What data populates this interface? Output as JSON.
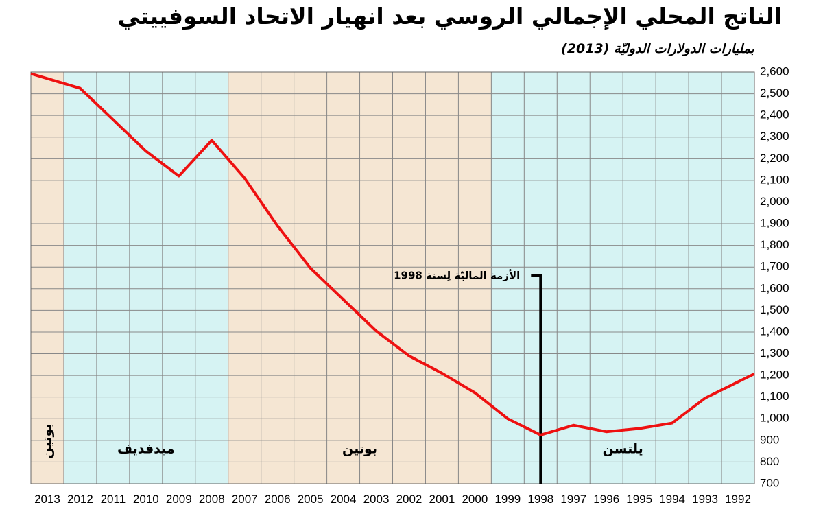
{
  "header": {
    "title": "الناتج المحلي الإجمالي الروسي بعد انهيار الاتحاد السوفييتي",
    "subtitle": "بمليارات الدولارات الدوليّة (2013)"
  },
  "chart_data": {
    "type": "line",
    "title": "الناتج المحلي الإجمالي الروسي بعد انهيار الاتحاد السوفييتي",
    "subtitle": "بمليارات الدولارات الدوليّة (2013)",
    "xlabel": "",
    "ylabel": "",
    "x_direction": "reversed",
    "y_axis_position": "right",
    "grid": true,
    "x": [
      2013,
      2012,
      2011,
      2010,
      2009,
      2008,
      2007,
      2006,
      2005,
      2004,
      2003,
      2002,
      2001,
      2000,
      1999,
      1998,
      1997,
      1996,
      1995,
      1994,
      1993,
      1992
    ],
    "ylim": [
      700,
      2600
    ],
    "y_ticks": [
      700,
      800,
      900,
      1000,
      1100,
      1200,
      1300,
      1400,
      1500,
      1600,
      1700,
      1800,
      1900,
      2000,
      2100,
      2200,
      2300,
      2400,
      2500,
      2600
    ],
    "y_tick_labels": [
      "700",
      "800",
      "900",
      "1,000",
      "1,100",
      "1,200",
      "1,300",
      "1,400",
      "1,500",
      "1,600",
      "1,700",
      "1,800",
      "1,900",
      "2,000",
      "2,100",
      "2,200",
      "2,300",
      "2,400",
      "2,500",
      "2,600"
    ],
    "series": [
      {
        "color": "#ee1111",
        "values": [
          2570,
          2525,
          2380,
          2235,
          2120,
          2285,
          2110,
          1890,
          1695,
          1550,
          1405,
          1290,
          1210,
          1120,
          1000,
          925,
          970,
          940,
          955,
          980,
          1095,
          1170
        ]
      }
    ],
    "eras": [
      {
        "label": "بوتين",
        "from": 2013.5,
        "to": 2012.5,
        "color": "#f5e6d3",
        "vertical": true
      },
      {
        "label": "ميدفديف",
        "from": 2012.5,
        "to": 2007.5,
        "color": "#d6f3f3",
        "vertical": false
      },
      {
        "label": "بوتين",
        "from": 2007.5,
        "to": 1999.5,
        "color": "#f5e6d3",
        "vertical": false
      },
      {
        "label": "يلتسن",
        "from": 1999.5,
        "to": 1991.5,
        "color": "#d6f3f3",
        "vertical": false
      }
    ],
    "annotation": {
      "label": "الأزمة الماليّة لِسنة 1998",
      "x": 1998,
      "y": 1660
    }
  }
}
